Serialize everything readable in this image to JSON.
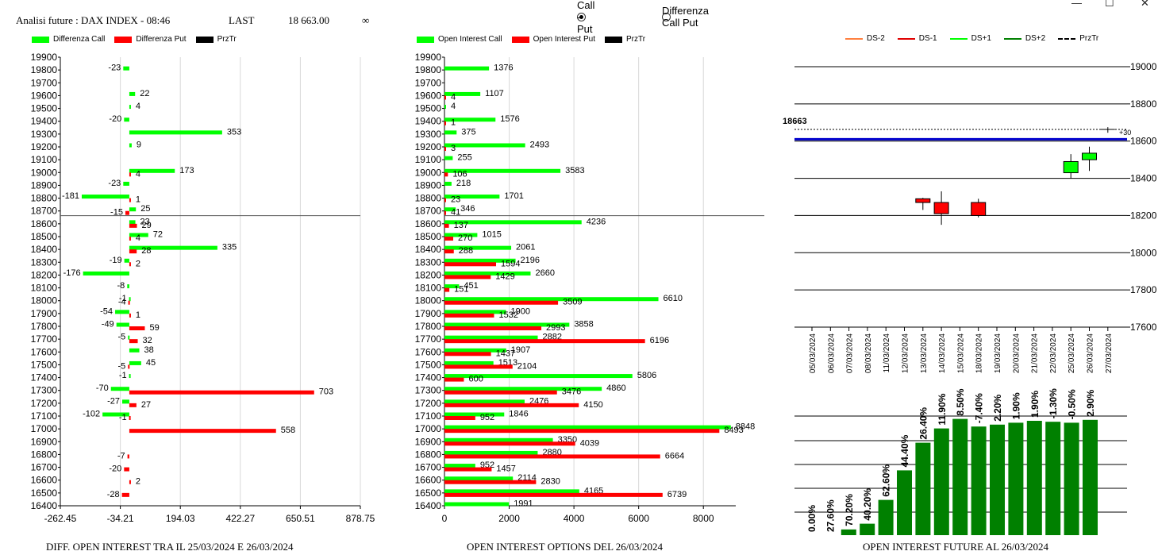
{
  "header": {
    "title": "Analisi future : DAX INDEX - 08:46",
    "last_label": "LAST",
    "last_value": "18 663.00",
    "infinity": "∞",
    "radio_call_put": "Call - Put",
    "radio_diff": "Differenza Call Put",
    "radio_selected": "call_put"
  },
  "window": {
    "minimize": "—",
    "maximize": "☐",
    "close": "✕"
  },
  "colors": {
    "green": "#00ff00",
    "red": "#ff0000",
    "black": "#000000",
    "blue": "#0000cc",
    "dark_green": "#008000"
  },
  "chart_data": [
    {
      "type": "bar",
      "orientation": "horizontal",
      "caption": "DIFF. OPEN INTEREST TRA IL 25/03/2024 E 26/03/2024",
      "legend": [
        "Differenza Call",
        "Differenza Put",
        "PrzTr"
      ],
      "xlim": [
        -262.45,
        878.75
      ],
      "xticks": [
        -262.45,
        -34.21,
        194.03,
        422.27,
        650.51,
        878.75
      ],
      "xtick_labels": [
        "-262.45",
        "-34.21",
        "194.03",
        "422.27",
        "650.51",
        "878.75"
      ],
      "price_line": 18663,
      "categories": [
        19900,
        19800,
        19700,
        19600,
        19500,
        19400,
        19300,
        19200,
        19100,
        19000,
        18900,
        18800,
        18700,
        18600,
        18500,
        18400,
        18300,
        18200,
        18100,
        18000,
        17900,
        17800,
        17700,
        17600,
        17500,
        17400,
        17300,
        17200,
        17100,
        17000,
        16900,
        16800,
        16700,
        16600,
        16500,
        16400
      ],
      "series": [
        {
          "name": "Differenza Call",
          "values": [
            null,
            -23,
            null,
            22,
            4,
            -20,
            353,
            9,
            null,
            173,
            -23,
            -181,
            25,
            23,
            72,
            335,
            -19,
            -176,
            -8,
            -1,
            -54,
            -49,
            -5,
            38,
            45,
            -1,
            -70,
            -27,
            -102,
            null,
            null,
            null,
            null,
            null,
            null,
            null
          ]
        },
        {
          "name": "Differenza Put",
          "values": [
            null,
            null,
            null,
            null,
            null,
            null,
            null,
            null,
            null,
            4,
            null,
            1,
            -15,
            29,
            4,
            28,
            2,
            null,
            null,
            -4,
            1,
            59,
            32,
            null,
            -5,
            null,
            703,
            27,
            -1,
            558,
            null,
            -7,
            -20,
            2,
            -28,
            null
          ]
        }
      ]
    },
    {
      "type": "bar",
      "orientation": "horizontal",
      "caption": "OPEN INTEREST OPTIONS DEL 26/03/2024",
      "legend": [
        "Open Interest Call",
        "Open Interest Put",
        "PrzTr"
      ],
      "xlim": [
        0,
        9000
      ],
      "xticks": [
        0,
        2000,
        4000,
        6000,
        8000
      ],
      "xtick_labels": [
        "0",
        "2000",
        "4000",
        "6000",
        "8000"
      ],
      "price_line": 18663,
      "categories": [
        19900,
        19800,
        19700,
        19600,
        19500,
        19400,
        19300,
        19200,
        19100,
        19000,
        18900,
        18800,
        18700,
        18600,
        18500,
        18400,
        18300,
        18200,
        18100,
        18000,
        17900,
        17800,
        17700,
        17600,
        17500,
        17400,
        17300,
        17200,
        17100,
        17000,
        16900,
        16800,
        16700,
        16600,
        16500,
        16400
      ],
      "series": [
        {
          "name": "Open Interest Call",
          "values": [
            null,
            1376,
            null,
            1107,
            4,
            1576,
            375,
            2493,
            255,
            3583,
            218,
            1701,
            346,
            4236,
            1015,
            2061,
            2196,
            2660,
            451,
            6610,
            1900,
            3858,
            2882,
            1907,
            1513,
            5806,
            4860,
            2476,
            1846,
            8848,
            3350,
            2880,
            952,
            2114,
            4165,
            1991
          ]
        },
        {
          "name": "Open Interest Put",
          "values": [
            null,
            null,
            null,
            4,
            null,
            1,
            null,
            3,
            null,
            106,
            null,
            23,
            41,
            137,
            270,
            288,
            1594,
            1429,
            151,
            3509,
            1532,
            2993,
            6196,
            1437,
            2104,
            600,
            3476,
            4150,
            952,
            8493,
            4039,
            6664,
            1457,
            2830,
            6739,
            null
          ]
        }
      ]
    },
    {
      "type": "candlestick",
      "legend": [
        "DS-2",
        "DS-1",
        "DS+1",
        "DS+2",
        "PrzTr"
      ],
      "legend_colors": [
        "#ff8040",
        "#e00000",
        "#00ff00",
        "#008000",
        "#000000"
      ],
      "ylim": [
        17600,
        19000
      ],
      "yticks": [
        17600,
        17800,
        18000,
        18200,
        18400,
        18600,
        18800,
        19000
      ],
      "price_label": "18663",
      "price_value": 18663,
      "price_note": "+30",
      "level_line": 18610,
      "categories": [
        "05/03/2024",
        "06/03/2024",
        "07/03/2024",
        "08/03/2024",
        "11/03/2024",
        "12/03/2024",
        "13/03/2024",
        "14/03/2024",
        "15/03/2024",
        "18/03/2024",
        "19/03/2024",
        "20/03/2024",
        "21/03/2024",
        "22/03/2024",
        "25/03/2024",
        "26/03/2024",
        "27/03/2024"
      ],
      "candles": [
        {
          "date": "13/03/2024",
          "open": 18290,
          "close": 18270,
          "high": 18295,
          "low": 18230
        },
        {
          "date": "14/03/2024",
          "open": 18270,
          "close": 18210,
          "high": 18330,
          "low": 18150
        },
        {
          "date": "18/03/2024",
          "open": 18270,
          "close": 18200,
          "high": 18290,
          "low": 18190
        },
        {
          "date": "25/03/2024",
          "open": 18430,
          "close": 18490,
          "high": 18530,
          "low": 18400
        },
        {
          "date": "26/03/2024",
          "open": 18500,
          "close": 18535,
          "high": 18570,
          "low": 18440
        },
        {
          "date": "27/03/2024",
          "open": 18663,
          "close": 18663,
          "high": 18675,
          "low": 18645
        }
      ]
    },
    {
      "type": "bar",
      "caption": "OPEN INTEREST FUTURE AL 26/03/2024",
      "categories": [
        "05/03/2024",
        "06/03/2024",
        "07/03/2024",
        "08/03/2024",
        "11/03/2024",
        "12/03/2024",
        "13/03/2024",
        "14/03/2024",
        "15/03/2024",
        "18/03/2024",
        "19/03/2024",
        "20/03/2024",
        "21/03/2024",
        "22/03/2024",
        "25/03/2024",
        "26/03/2024"
      ],
      "labels": [
        "0.00%",
        "27.60%",
        "70.20%",
        "40.20%",
        "62.60%",
        "44.40%",
        "26.40%",
        "11.90%",
        "8.50%",
        "-7.40%",
        "2.20%",
        "1.90%",
        "1.90%",
        "-1.30%",
        "-0.50%",
        "2.90%"
      ],
      "values": [
        0,
        0,
        6,
        12,
        37,
        68,
        97,
        112,
        122,
        114,
        116,
        118,
        120,
        119,
        118,
        121
      ],
      "ylim": [
        0,
        125
      ]
    }
  ]
}
